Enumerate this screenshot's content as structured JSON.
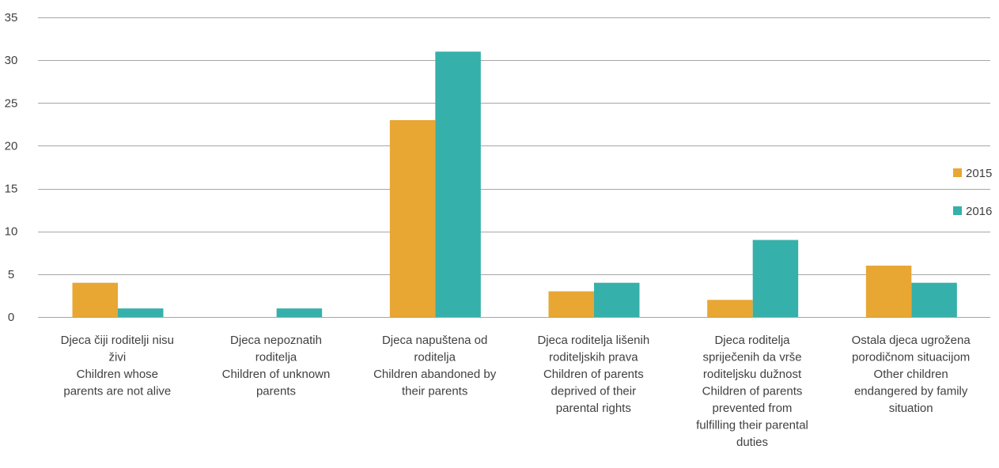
{
  "chart_data": {
    "type": "bar",
    "title": "",
    "xlabel": "",
    "ylabel": "",
    "ylim": [
      0,
      35
    ],
    "yticks": [
      0,
      5,
      10,
      15,
      20,
      25,
      30,
      35
    ],
    "grid": true,
    "legend_position": "right",
    "categories": [
      [
        "Djeca čiji roditelji nisu",
        "živi",
        "Children  whose",
        "parents are not alive"
      ],
      [
        "Djeca nepoznatih",
        "roditelja",
        "Children of unknown",
        "parents"
      ],
      [
        "Djeca napuštena od",
        "roditelja",
        "Children abandoned by",
        "their parents"
      ],
      [
        "Djeca roditelja lišenih",
        "roditeljskih prava",
        "Children of parents",
        "deprived of their",
        "parental rights"
      ],
      [
        "Djeca roditelja",
        "spriječenih da vrše",
        "roditeljsku dužnost",
        "Children of parents",
        "prevented from",
        "fulfilling their parental",
        "duties"
      ],
      [
        "Ostala djeca ugrožena",
        "porodičnom situacijom",
        "Other children",
        "endangered by family",
        "situation"
      ]
    ],
    "series": [
      {
        "name": "2015",
        "color": "#e8a633",
        "values": [
          4,
          0,
          23,
          3,
          2,
          6
        ]
      },
      {
        "name": "2016",
        "color": "#36b0aa",
        "values": [
          1,
          1,
          31,
          4,
          9,
          4
        ]
      }
    ]
  }
}
